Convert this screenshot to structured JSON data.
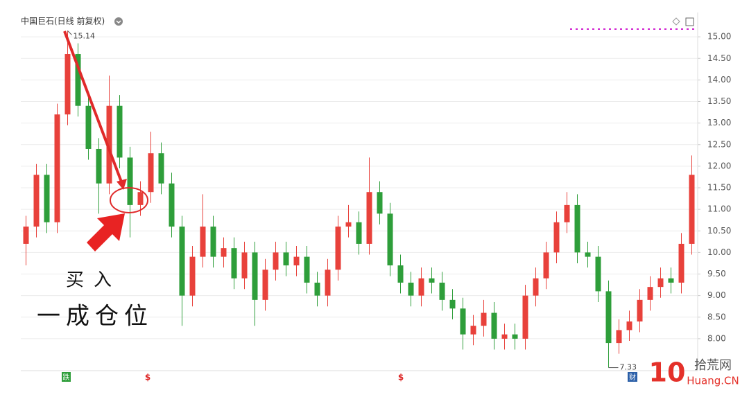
{
  "chart_data": {
    "type": "candlestick",
    "title": "中国巨石(日线 前复权)",
    "open": [
      10.2,
      10.6,
      11.8,
      10.7,
      13.2,
      14.6,
      13.4,
      12.4,
      11.6,
      13.4,
      12.2,
      11.1,
      11.4,
      12.3,
      11.6,
      10.6,
      9.0,
      9.9,
      10.6,
      9.9,
      10.1,
      9.4,
      10.0,
      8.9,
      9.6,
      10.0,
      9.7,
      9.9,
      9.3,
      9.0,
      9.6,
      10.6,
      10.7,
      10.2,
      11.4,
      10.9,
      9.7,
      9.3,
      9.0,
      9.4,
      9.3,
      8.9,
      8.7,
      8.1,
      8.3,
      8.6,
      8.0,
      8.1,
      8.0,
      9.0,
      9.4,
      10.0,
      10.7,
      11.1,
      10.0,
      9.9,
      9.1,
      7.9,
      8.2,
      8.4,
      8.9,
      9.2,
      9.4,
      9.3,
      10.2
    ],
    "high": [
      10.85,
      12.05,
      12.05,
      13.45,
      15.14,
      14.85,
      13.65,
      12.65,
      14.1,
      13.65,
      12.45,
      11.65,
      12.8,
      12.55,
      11.85,
      10.85,
      10.15,
      11.35,
      10.85,
      10.35,
      10.35,
      10.25,
      10.25,
      9.85,
      10.25,
      10.25,
      10.15,
      10.15,
      9.55,
      9.85,
      10.85,
      11.1,
      10.95,
      12.2,
      11.65,
      11.15,
      9.95,
      9.55,
      9.65,
      9.65,
      9.55,
      9.15,
      8.95,
      8.55,
      8.9,
      8.85,
      8.35,
      8.35,
      9.25,
      9.65,
      10.25,
      10.95,
      11.4,
      11.35,
      10.25,
      10.15,
      9.35,
      8.45,
      8.65,
      9.15,
      9.45,
      9.65,
      9.65,
      10.45,
      12.25
    ],
    "low": [
      9.7,
      10.35,
      10.45,
      10.45,
      12.95,
      13.15,
      12.15,
      10.9,
      11.35,
      11.95,
      10.35,
      10.85,
      11.15,
      11.35,
      10.35,
      8.3,
      8.75,
      9.65,
      9.65,
      9.65,
      9.15,
      9.15,
      8.3,
      8.65,
      9.35,
      9.45,
      9.45,
      9.05,
      8.75,
      8.75,
      9.35,
      10.35,
      9.95,
      9.95,
      10.65,
      9.45,
      9.05,
      8.75,
      8.75,
      9.05,
      8.65,
      8.45,
      7.75,
      7.85,
      8.05,
      7.75,
      7.75,
      7.75,
      7.75,
      8.75,
      9.15,
      9.75,
      10.45,
      9.75,
      9.65,
      8.85,
      7.33,
      7.65,
      7.95,
      8.15,
      8.65,
      8.95,
      9.05,
      9.05,
      9.95
    ],
    "close": [
      10.6,
      11.8,
      10.7,
      13.2,
      14.6,
      13.4,
      12.4,
      11.6,
      13.4,
      12.2,
      11.1,
      11.4,
      12.3,
      11.6,
      10.6,
      9.0,
      9.9,
      10.6,
      9.9,
      10.1,
      9.4,
      10.0,
      8.9,
      9.6,
      10.0,
      9.7,
      9.9,
      9.3,
      9.0,
      9.6,
      10.6,
      10.7,
      10.2,
      11.4,
      10.9,
      9.7,
      9.3,
      9.0,
      9.4,
      9.3,
      8.9,
      8.7,
      8.1,
      8.3,
      8.6,
      8.0,
      8.1,
      8.0,
      9.0,
      9.4,
      10.0,
      10.7,
      11.1,
      10.0,
      9.9,
      9.1,
      7.9,
      8.2,
      8.4,
      8.9,
      9.2,
      9.4,
      9.3,
      10.2,
      11.8
    ],
    "up_color": "#e8413b",
    "down_color": "#2e9e3a",
    "ylim": [
      7.5,
      15.5
    ],
    "yticks": [
      {
        "value": 8,
        "label": "8.00"
      },
      {
        "value": 8.5,
        "label": "8.50"
      },
      {
        "value": 9,
        "label": "9.00"
      },
      {
        "value": 9.5,
        "label": "9.50"
      },
      {
        "value": 10,
        "label": "10.00"
      },
      {
        "value": 10.5,
        "label": "10.50"
      },
      {
        "value": 11,
        "label": "11.00"
      },
      {
        "value": 11.5,
        "label": "11.50"
      },
      {
        "value": 12,
        "label": "12.00"
      },
      {
        "value": 12.5,
        "label": "12.50"
      },
      {
        "value": 13,
        "label": "13.00"
      },
      {
        "value": 13.5,
        "label": "13.50"
      },
      {
        "value": 14,
        "label": "14.00"
      },
      {
        "value": 14.5,
        "label": "14.50"
      },
      {
        "value": 15,
        "label": "15.00"
      }
    ],
    "grid": true,
    "high_label": 15.14,
    "low_label": 7.33,
    "annotations": [
      "买入",
      "一成仓位"
    ],
    "events": [
      "跌",
      "$",
      "$",
      "财"
    ],
    "watermark": {
      "logo": "10",
      "name": "拾荒网",
      "site": "Huang.CN"
    }
  }
}
